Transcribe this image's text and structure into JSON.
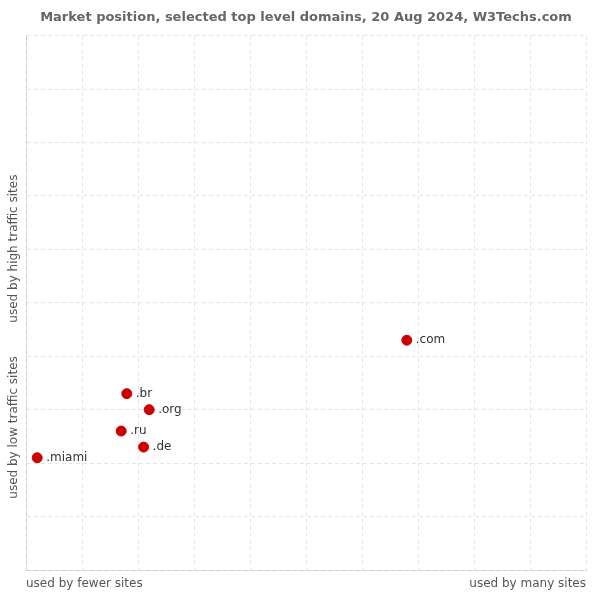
{
  "chart_data": {
    "type": "scatter",
    "title": "Market position, selected top level domains, 20 Aug 2024, W3Techs.com",
    "labels": [
      ".com",
      ".br",
      ".org",
      ".ru",
      ".de",
      ".miami"
    ],
    "x": [
      68,
      18,
      22,
      17,
      21,
      2
    ],
    "values": [
      43,
      33,
      30,
      26,
      23,
      21
    ],
    "color": "#cc0000",
    "xlabel_left": "used by fewer sites",
    "xlabel_right": "used by many sites",
    "ylabel_top": "used by high traffic sites",
    "ylabel_bottom": "used by low traffic sites",
    "xlim": [
      0,
      100
    ],
    "ylim": [
      0,
      100
    ],
    "xticks": [
      0,
      10,
      20,
      30,
      40,
      50,
      60,
      70,
      80,
      90,
      100
    ],
    "yticks": [
      0,
      10,
      20,
      30,
      40,
      50,
      60,
      70,
      80,
      90,
      100
    ],
    "grid": true,
    "tick_labels": false,
    "legend": false
  }
}
